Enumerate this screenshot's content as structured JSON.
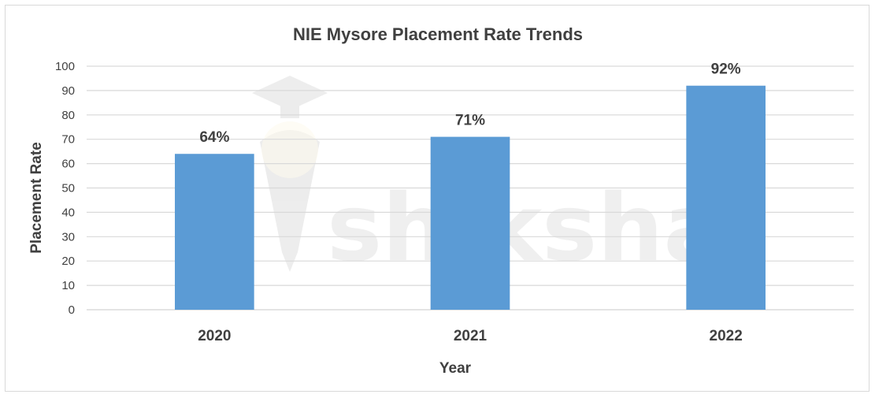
{
  "chart_data": {
    "type": "bar",
    "title": "NIE Mysore Placement Rate Trends",
    "xlabel": "Year",
    "ylabel": "Placement Rate",
    "categories": [
      "2020",
      "2021",
      "2022"
    ],
    "values": [
      64,
      71,
      92
    ],
    "data_labels": [
      "64%",
      "71%",
      "92%"
    ],
    "ylim": [
      0,
      100
    ],
    "yticks": [
      0,
      10,
      20,
      30,
      40,
      50,
      60,
      70,
      80,
      90,
      100
    ],
    "grid": true,
    "legend": "none",
    "bar_color": "#5b9bd5",
    "gridline_color": "#d9d9d9"
  },
  "watermark": {
    "text": "shiksha",
    "icon": "graduation-cap-pen-icon"
  }
}
